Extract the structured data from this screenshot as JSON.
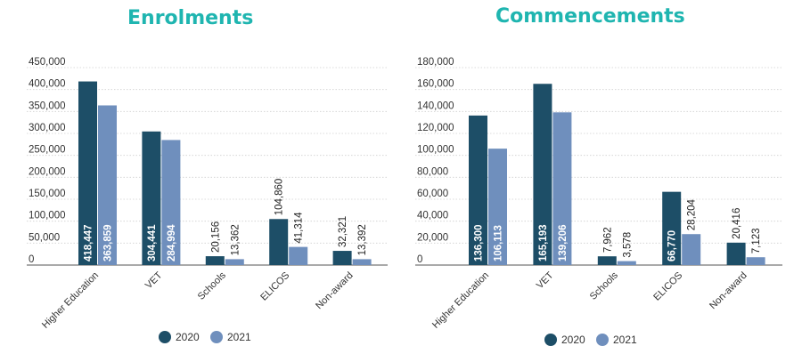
{
  "chart_data": [
    {
      "type": "bar",
      "title": "Enrolments",
      "categories": [
        "Higher Education",
        "VET",
        "Schools",
        "ELICOS",
        "Non-award"
      ],
      "series": [
        {
          "name": "2020",
          "values": [
            418447,
            304441,
            20156,
            104860,
            32321
          ],
          "labels": [
            "418,447",
            "304,441",
            "20,156",
            "104,860",
            "32,321"
          ]
        },
        {
          "name": "2021",
          "values": [
            363859,
            284994,
            13362,
            41314,
            13392
          ],
          "labels": [
            "363,859",
            "284,994",
            "13,362",
            "41,314",
            "13,392"
          ]
        }
      ],
      "ylim": [
        0,
        450000
      ],
      "yticks": [
        "0",
        "50,000",
        "100,000",
        "150,000",
        "200,000",
        "250,000",
        "300,000",
        "350,000",
        "400,000",
        "450,000"
      ],
      "xlabel": "",
      "ylabel": "",
      "grid": true,
      "legend": "bottom"
    },
    {
      "type": "bar",
      "title": "Commencements",
      "categories": [
        "Higher Education",
        "VET",
        "Schools",
        "ELICOS",
        "Non-award"
      ],
      "series": [
        {
          "name": "2020",
          "values": [
            136300,
            165193,
            7962,
            66770,
            20416
          ],
          "labels": [
            "136,300",
            "165,193",
            "7,962",
            "66,770",
            "20,416"
          ]
        },
        {
          "name": "2021",
          "values": [
            106113,
            139206,
            3578,
            28204,
            7123
          ],
          "labels": [
            "106,113",
            "139,206",
            "3,578",
            "28,204",
            "7,123"
          ]
        }
      ],
      "ylim": [
        0,
        180000
      ],
      "yticks": [
        "0",
        "20,000",
        "40,000",
        "60,000",
        "80,000",
        "100,000",
        "120,000",
        "140,000",
        "160,000",
        "180,000"
      ],
      "xlabel": "",
      "ylabel": "",
      "grid": true,
      "legend": "bottom"
    }
  ],
  "colors": {
    "2020": "#1d4e67",
    "2021": "#6f8fbd",
    "title": "#1fb5b0"
  }
}
